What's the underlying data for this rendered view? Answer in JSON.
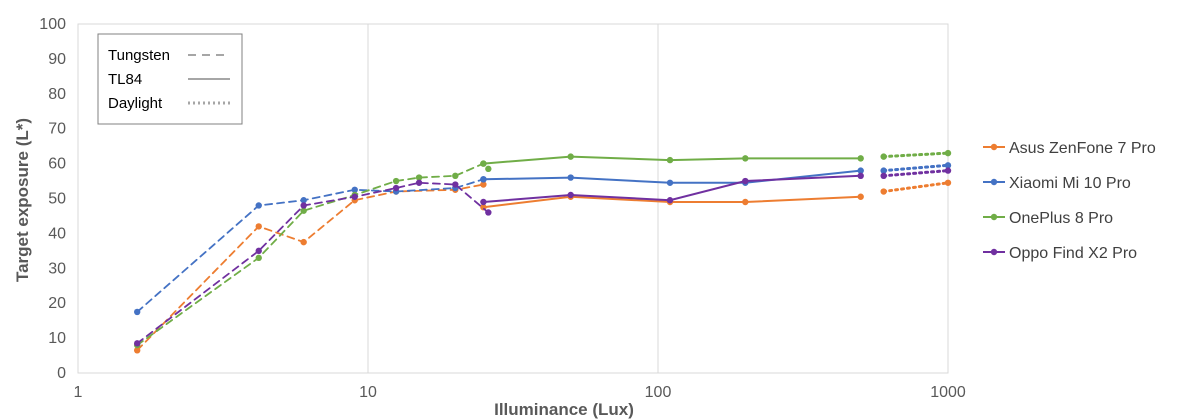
{
  "chart_data": {
    "type": "line",
    "title": "",
    "xlabel": "Illuminance (Lux)",
    "ylabel": "Target exposure (L*)",
    "x_scale": "log",
    "xlim": [
      1,
      1000
    ],
    "ylim": [
      0,
      100
    ],
    "x_ticks": [
      "1",
      "10",
      "100",
      "1000"
    ],
    "y_ticks": [
      "0",
      "10",
      "20",
      "30",
      "40",
      "50",
      "60",
      "70",
      "80",
      "90",
      "100"
    ],
    "grid": "vertical major lines at 1, 10, 100, 1000",
    "style_legend": {
      "position": "top-left inside plot",
      "items": [
        {
          "label": "Tungsten",
          "dash": "dashed"
        },
        {
          "label": "TL84",
          "dash": "solid"
        },
        {
          "label": "Daylight",
          "dash": "dotted"
        }
      ]
    },
    "legend_position": "right",
    "series": [
      {
        "name": "Asus ZenFone 7 Pro",
        "color": "#ED7D31",
        "tungsten": {
          "x": [
            1.6,
            4.2,
            6,
            9,
            12.5,
            20,
            25
          ],
          "y": [
            6.5,
            42,
            37.5,
            49.5,
            52,
            52.5,
            54
          ]
        },
        "tl84": {
          "x": [
            25,
            50,
            110,
            200,
            500
          ],
          "y": [
            47.5,
            50.5,
            49,
            49,
            50.5
          ]
        },
        "daylight": {
          "x": [
            600,
            1000
          ],
          "y": [
            52,
            54.5
          ]
        }
      },
      {
        "name": "Xiaomi Mi 10 Pro",
        "color": "#4472C4",
        "tungsten": {
          "x": [
            1.6,
            4.2,
            6,
            9,
            12.5,
            20,
            25
          ],
          "y": [
            17.5,
            48,
            49.5,
            52.5,
            52,
            53,
            55.5
          ]
        },
        "tl84": {
          "x": [
            25,
            50,
            110,
            200,
            500
          ],
          "y": [
            55.5,
            56,
            54.5,
            54.5,
            58
          ]
        },
        "daylight": {
          "x": [
            600,
            1000
          ],
          "y": [
            58,
            59.5
          ]
        }
      },
      {
        "name": "OnePlus 8 Pro",
        "color": "#70AD47",
        "tungsten": {
          "x": [
            1.6,
            4.2,
            6,
            9,
            12.5,
            15,
            20,
            25,
            26
          ],
          "y": [
            8,
            33,
            46.5,
            51,
            55,
            56,
            56.5,
            60,
            58.5
          ]
        },
        "tl84": {
          "x": [
            25,
            50,
            110,
            200,
            500
          ],
          "y": [
            60,
            62,
            61,
            61.5,
            61.5
          ]
        },
        "daylight": {
          "x": [
            600,
            1000
          ],
          "y": [
            62,
            63
          ]
        }
      },
      {
        "name": "Oppo Find X2 Pro",
        "color": "#7030A0",
        "tungsten": {
          "x": [
            1.6,
            4.2,
            6,
            9,
            12.5,
            15,
            20,
            26
          ],
          "y": [
            8.5,
            35,
            48,
            50.5,
            53,
            54.5,
            54,
            46
          ]
        },
        "tl84": {
          "x": [
            25,
            50,
            110,
            200,
            500
          ],
          "y": [
            49,
            51,
            49.5,
            55,
            56.5
          ]
        },
        "daylight": {
          "x": [
            600,
            1000
          ],
          "y": [
            56.5,
            58
          ]
        }
      }
    ]
  }
}
